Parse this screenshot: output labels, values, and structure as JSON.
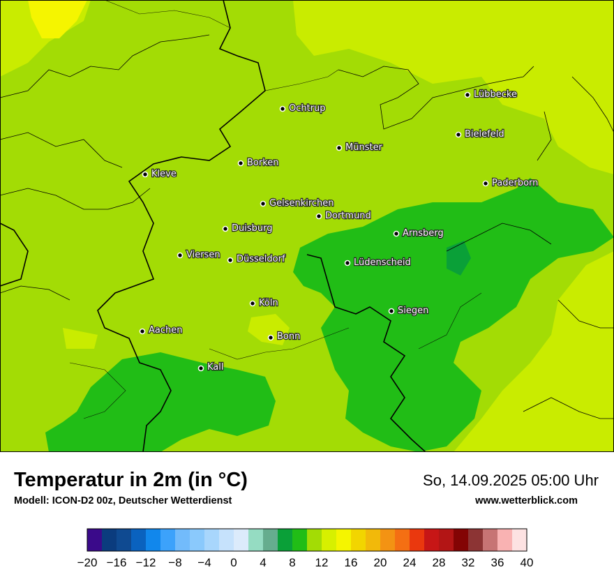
{
  "map": {
    "title": "Temperatur in 2m (in °C)",
    "model_info": "Modell: ICON-D2 00z, Deutscher Wetterdienst",
    "datetime": "So, 14.09.2025 05:00 Uhr",
    "website": "www.wetterblick.com",
    "cities": [
      {
        "name": "Lübbecke"
      },
      {
        "name": "Ochtrup"
      },
      {
        "name": "Bielefeld"
      },
      {
        "name": "Münster"
      },
      {
        "name": "Borken"
      },
      {
        "name": "Kleve"
      },
      {
        "name": "Paderborn"
      },
      {
        "name": "Gelsenkirchen"
      },
      {
        "name": "Dortmund"
      },
      {
        "name": "Duisburg"
      },
      {
        "name": "Arnsberg"
      },
      {
        "name": "Viersen"
      },
      {
        "name": "Düsseldorf"
      },
      {
        "name": "Lüdenscheid"
      },
      {
        "name": "Köln"
      },
      {
        "name": "Siegen"
      },
      {
        "name": "Aachen"
      },
      {
        "name": "Bonn"
      },
      {
        "name": "Kall"
      }
    ]
  },
  "legend": {
    "min": -20,
    "max": 40,
    "step": 2,
    "colors": [
      "#3a0a8a",
      "#0b3c7e",
      "#0f4a91",
      "#0a62bf",
      "#1187ec",
      "#3ca2fb",
      "#72bbfb",
      "#8ac9fc",
      "#a8d6fc",
      "#c6e2fc",
      "#dcebfb",
      "#95dcc2",
      "#66ad8e",
      "#0aa038",
      "#21bd16",
      "#a3dc05",
      "#d7f000",
      "#f5f500",
      "#f2d500",
      "#f2b90a",
      "#f39313",
      "#f46f13",
      "#ea380e",
      "#c71616",
      "#b31515",
      "#830404",
      "#8c3434",
      "#c77474",
      "#f9b2b2",
      "#fde2e2"
    ],
    "tick_labels": [
      "−20",
      "−16",
      "−12",
      "−8",
      "−4",
      "0",
      "4",
      "8",
      "12",
      "16",
      "20",
      "24",
      "28",
      "32",
      "36",
      "40"
    ]
  }
}
